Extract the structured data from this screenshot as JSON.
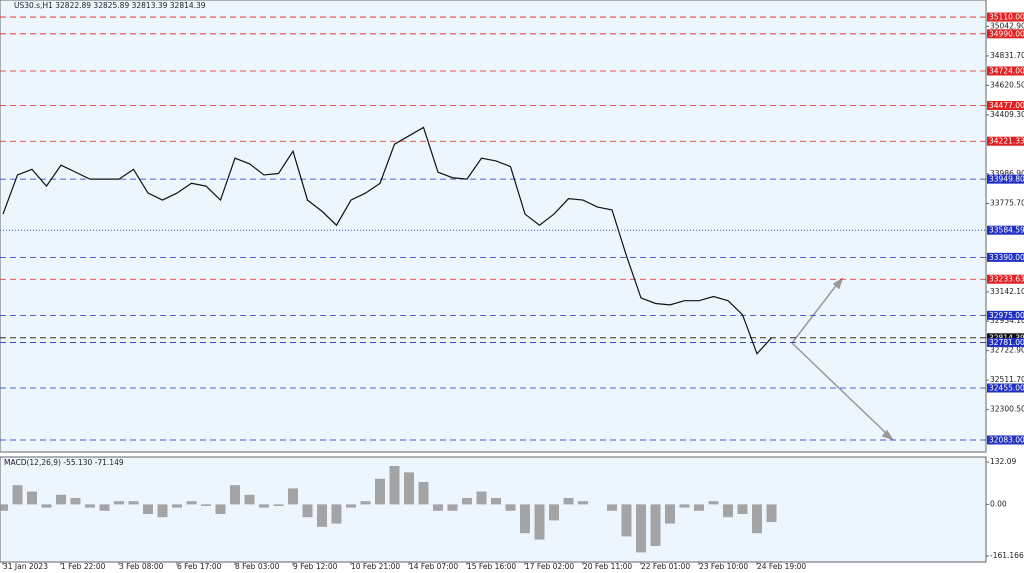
{
  "chart_data": {
    "type": "line",
    "title": "US30.s,H1  32822.89 32825.89 32813.39 32814.39",
    "categories": [
      "31 Jan 2023",
      null,
      null,
      null,
      "1 Feb 22:00",
      null,
      null,
      null,
      "3 Feb 08:00",
      null,
      null,
      null,
      "6 Feb 17:00",
      null,
      null,
      null,
      "8 Feb 03:00",
      null,
      null,
      null,
      "9 Feb 12:00",
      null,
      null,
      null,
      "10 Feb 21:00",
      null,
      null,
      null,
      "14 Feb 07:00",
      null,
      null,
      null,
      "15 Feb 16:00",
      null,
      null,
      null,
      "17 Feb 02:00",
      null,
      null,
      null,
      "20 Feb 11:00",
      null,
      null,
      null,
      "22 Feb 01:00",
      null,
      null,
      null,
      "23 Feb 10:00",
      null,
      null,
      null,
      "24 Feb 19:00",
      null
    ],
    "series": [
      {
        "name": "US30.s",
        "color": "#111111",
        "values": [
          33700,
          33980,
          34020,
          33900,
          34050,
          34000,
          33950,
          33950,
          33950,
          34020,
          33850,
          33800,
          33850,
          33920,
          33900,
          33800,
          34100,
          34060,
          33980,
          33990,
          34150,
          33800,
          33720,
          33620,
          33800,
          33850,
          33920,
          34200,
          34260,
          34320,
          34000,
          33960,
          33950,
          34100,
          34080,
          34040,
          33700,
          33620,
          33700,
          33810,
          33800,
          33750,
          33730,
          33400,
          33100,
          33060,
          33050,
          33080,
          33080,
          33110,
          33080,
          32980,
          32700,
          32814.39
        ]
      }
    ],
    "ylim": [
      31997,
      35232
    ],
    "yticks": [
      {
        "value": 35042.9,
        "label": "35042.90"
      },
      {
        "value": 34831.7,
        "label": "34831.70"
      },
      {
        "value": 34620.5,
        "label": "34620.50"
      },
      {
        "value": 34409.3,
        "label": "34409.30"
      },
      {
        "value": 33986.9,
        "label": "33986.90"
      },
      {
        "value": 33775.7,
        "label": "33775.70"
      },
      {
        "value": 33142.1,
        "label": "33142.10"
      },
      {
        "value": 32934.1,
        "label": "32934.10"
      },
      {
        "value": 32722.9,
        "label": "32722.90"
      },
      {
        "value": 32511.7,
        "label": "32511.70"
      },
      {
        "value": 32300.5,
        "label": "32300.50"
      }
    ],
    "levels": [
      {
        "value": 35110,
        "label": "35110.00",
        "color": "#e02020",
        "dash": "dashed"
      },
      {
        "value": 34990,
        "label": "34990.00",
        "color": "#e02020",
        "dash": "dashed"
      },
      {
        "value": 34724,
        "label": "34724.00",
        "color": "#e02020",
        "dash": "dashed"
      },
      {
        "value": 34477,
        "label": "34477.00",
        "color": "#e02020",
        "dash": "dashed"
      },
      {
        "value": 34221.33,
        "label": "34221.33",
        "color": "#e02020",
        "dash": "dashed"
      },
      {
        "value": 33949.8,
        "label": "33949.80",
        "color": "#2030c0",
        "dash": "dashed"
      },
      {
        "value": 33584.59,
        "label": "33584.59",
        "color": "#2030c0",
        "dash": "dotted"
      },
      {
        "value": 33390,
        "label": "33390.00",
        "color": "#2030c0",
        "dash": "dashed"
      },
      {
        "value": 33233.63,
        "label": "33233.63",
        "color": "#e02020",
        "dash": "dashed"
      },
      {
        "value": 32975,
        "label": "32975.00",
        "color": "#2030c0",
        "dash": "dashed"
      },
      {
        "value": 32814.39,
        "label": "32814.39",
        "color": "#111111",
        "dash": "dashed"
      },
      {
        "value": 32781,
        "label": "32781.00",
        "color": "#2030c0",
        "dash": "dashed"
      },
      {
        "value": 32455,
        "label": "32455.00",
        "color": "#2030c0",
        "dash": "dashed"
      },
      {
        "value": 32083,
        "label": "32083.00",
        "color": "#2030c0",
        "dash": "dashed"
      }
    ],
    "macd": {
      "title": "MACD(12,26,9) -55.130 -71.149",
      "color": "#888888",
      "values": [
        -20,
        60,
        40,
        -10,
        30,
        20,
        -10,
        -20,
        10,
        10,
        -30,
        -40,
        -10,
        10,
        -5,
        -30,
        60,
        30,
        -10,
        -5,
        50,
        -40,
        -70,
        -60,
        -10,
        10,
        80,
        120,
        100,
        70,
        -20,
        -20,
        20,
        40,
        20,
        -20,
        -90,
        -110,
        -50,
        20,
        10,
        0,
        -20,
        -100,
        -150,
        -130,
        -60,
        -10,
        -20,
        10,
        -40,
        -30,
        -90,
        -55.13
      ],
      "ylim": [
        -180,
        148
      ],
      "yticks": [
        {
          "value": 132.09,
          "label": "132.09"
        },
        {
          "value": 0,
          "label": "0.00"
        },
        -161.166
      ]
    }
  }
}
